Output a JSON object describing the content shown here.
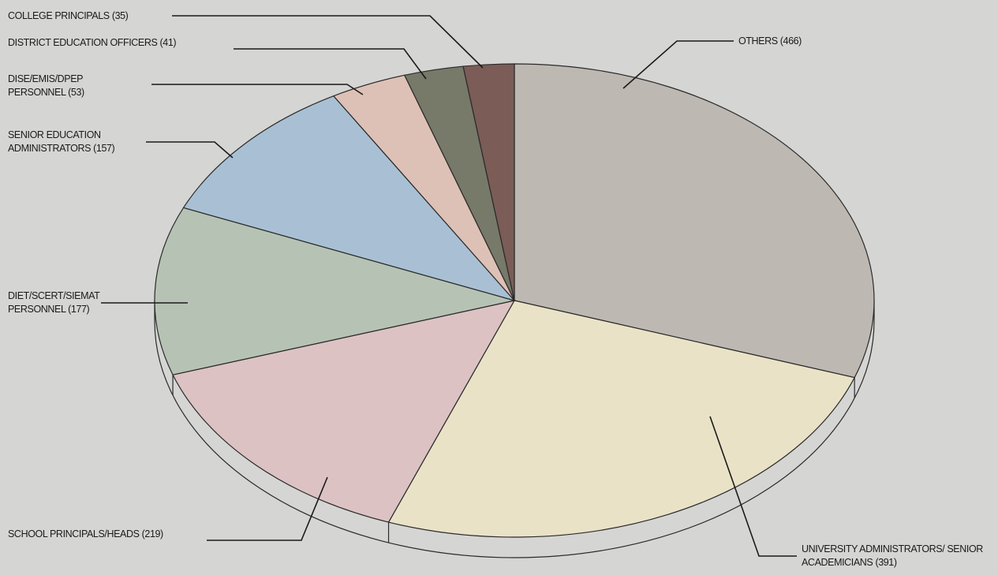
{
  "chart_data": {
    "type": "pie",
    "categories": [
      "OTHERS",
      "UNIVERSITY ADMINISTRATORS/ SENIOR ACADEMICIANS",
      "SCHOOL PRINCIPALS/HEADS",
      "DIET/SCERT/SIEMAT PERSONNEL",
      "SENIOR EDUCATION ADMINISTRATORS",
      "DISE/EMIS/DPEP PERSONNEL",
      "DISTRICT EDUCATION OFFICERS",
      "COLLEGE PRINCIPALS"
    ],
    "values": [
      466,
      391,
      219,
      177,
      157,
      53,
      41,
      35
    ],
    "value_labels": [
      "(466)",
      "(391)",
      "(219)",
      "(177)",
      "(157)",
      "(53)",
      "(41)",
      "(35)"
    ],
    "colors": [
      "#bdb8b2",
      "#e9e2c6",
      "#dcc2c3",
      "#b6c3b4",
      "#a9c0d4",
      "#dec1b6",
      "#777969",
      "#7b5c57"
    ]
  }
}
